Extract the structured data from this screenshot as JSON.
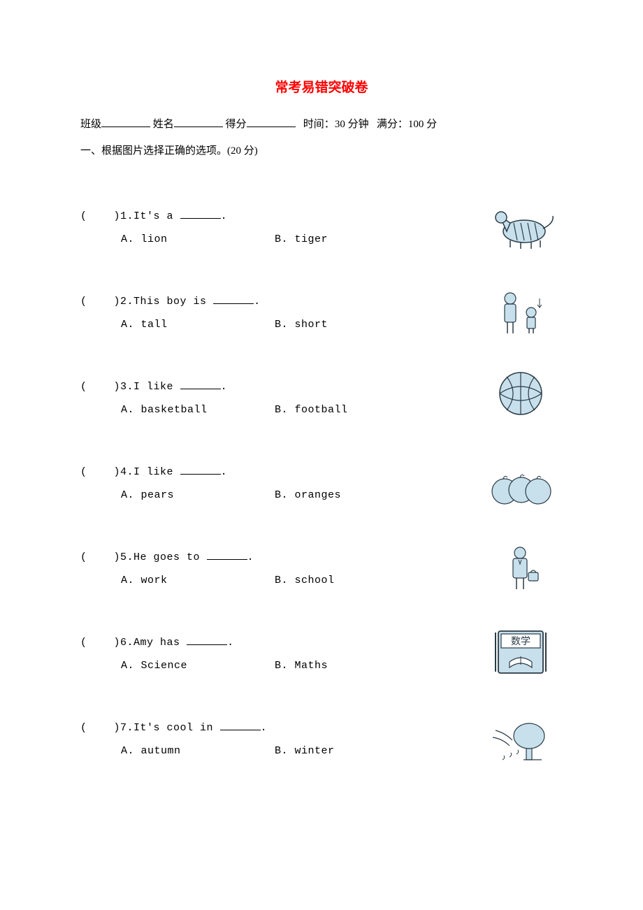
{
  "title": "常考易错突破卷",
  "header": {
    "class_label": "班级",
    "name_label": "姓名",
    "score_label": "得分",
    "time_label": "时间：",
    "time_value": "30 分钟",
    "full_label": "满分：",
    "full_value": "100 分"
  },
  "section1": {
    "title": "一、根据图片选择正确的选项。(20 分)"
  },
  "questions": [
    {
      "num": "1",
      "stem": "It's a",
      "optA": "A. lion",
      "optB": "B. tiger",
      "icon": "tiger"
    },
    {
      "num": "2",
      "stem": "This boy is",
      "optA": "A. tall",
      "optB": "B. short",
      "icon": "tall-short"
    },
    {
      "num": "3",
      "stem": "I like",
      "optA": "A. basketball",
      "optB": "B. football",
      "icon": "basketball"
    },
    {
      "num": "4",
      "stem": "I like",
      "optA": "A. pears",
      "optB": "B. oranges",
      "icon": "oranges"
    },
    {
      "num": "5",
      "stem": "He goes to",
      "optA": "A. work",
      "optB": "B. school",
      "icon": "work"
    },
    {
      "num": "6",
      "stem": "Amy has",
      "optA": "A. Science",
      "optB": "B. Maths",
      "icon": "maths-book"
    },
    {
      "num": "7",
      "stem": "It's cool in",
      "optA": "A. autumn",
      "optB": "B. winter",
      "icon": "autumn"
    }
  ],
  "colors": {
    "title": "#ff0000",
    "text": "#000000",
    "icon_fill": "#c8e0ec",
    "icon_stroke": "#2a3b45",
    "background": "#ffffff"
  }
}
